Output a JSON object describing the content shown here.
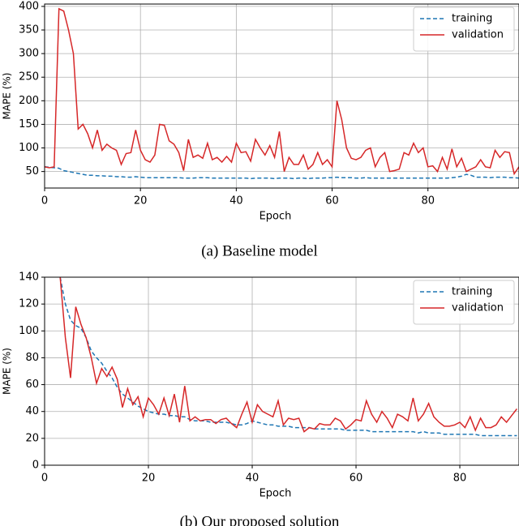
{
  "chart_data": [
    {
      "type": "line",
      "caption": "(a) Baseline model",
      "xlabel": "Epoch",
      "ylabel": "MAPE (%)",
      "x": [
        0,
        1,
        2,
        3,
        4,
        5,
        6,
        7,
        8,
        9,
        10,
        11,
        12,
        13,
        14,
        15,
        16,
        17,
        18,
        19,
        20,
        21,
        22,
        23,
        24,
        25,
        26,
        27,
        28,
        29,
        30,
        31,
        32,
        33,
        34,
        35,
        36,
        37,
        38,
        39,
        40,
        41,
        42,
        43,
        44,
        45,
        46,
        47,
        48,
        49,
        50,
        51,
        52,
        53,
        54,
        55,
        56,
        57,
        58,
        59,
        60,
        61,
        62,
        63,
        64,
        65,
        66,
        67,
        68,
        69,
        70,
        71,
        72,
        73,
        74,
        75,
        76,
        77,
        78,
        79,
        80,
        81,
        82,
        83,
        84,
        85,
        86,
        87,
        88,
        89,
        90,
        91,
        92,
        93,
        94,
        95,
        96,
        97,
        98,
        99
      ],
      "series": [
        {
          "name": "training",
          "color": "#1f77b4",
          "linestyle": "dashed",
          "values": [
            60,
            59,
            58,
            57,
            52,
            50,
            48,
            46,
            44,
            42,
            42,
            41,
            41,
            40,
            40,
            39,
            39,
            38,
            38,
            39,
            38,
            37,
            37,
            37,
            37,
            37,
            37,
            37,
            37,
            36,
            36,
            36,
            37,
            37,
            37,
            36,
            36,
            36,
            36,
            36,
            36,
            36,
            36,
            35,
            36,
            36,
            36,
            36,
            35,
            36,
            36,
            36,
            35,
            36,
            36,
            35,
            36,
            36,
            36,
            37,
            37,
            38,
            37,
            37,
            37,
            36,
            36,
            37,
            36,
            36,
            36,
            36,
            36,
            36,
            36,
            36,
            36,
            36,
            36,
            36,
            36,
            36,
            36,
            36,
            36,
            37,
            38,
            40,
            44,
            42,
            38,
            38,
            38,
            37,
            38,
            38,
            38,
            37,
            37,
            36
          ]
        },
        {
          "name": "validation",
          "color": "#d62728",
          "linestyle": "solid",
          "values": [
            60,
            58,
            60,
            395,
            390,
            350,
            300,
            140,
            150,
            130,
            100,
            138,
            95,
            108,
            100,
            95,
            65,
            88,
            90,
            138,
            95,
            75,
            70,
            85,
            150,
            148,
            115,
            108,
            90,
            52,
            118,
            80,
            85,
            78,
            110,
            75,
            80,
            70,
            82,
            70,
            110,
            90,
            92,
            72,
            118,
            100,
            85,
            105,
            80,
            135,
            50,
            80,
            65,
            65,
            85,
            55,
            65,
            90,
            65,
            75,
            60,
            200,
            160,
            100,
            78,
            75,
            80,
            95,
            100,
            60,
            80,
            90,
            50,
            52,
            55,
            90,
            85,
            110,
            90,
            100,
            60,
            62,
            50,
            80,
            55,
            98,
            60,
            78,
            50,
            55,
            60,
            75,
            60,
            58,
            95,
            80,
            92,
            90,
            45,
            60
          ]
        }
      ],
      "xlim": [
        0,
        99
      ],
      "xticks": [
        0,
        20,
        40,
        60,
        80
      ],
      "ylim": [
        15,
        405
      ],
      "yticks": [
        50,
        100,
        150,
        200,
        250,
        300,
        350,
        400
      ],
      "grid": true,
      "legend": "upper right"
    },
    {
      "type": "line",
      "caption": "(b) Our proposed solution",
      "xlabel": "Epoch",
      "ylabel": "MAPE (%)",
      "x": [
        3,
        4,
        5,
        6,
        7,
        8,
        9,
        10,
        11,
        12,
        13,
        14,
        15,
        16,
        17,
        18,
        19,
        20,
        21,
        22,
        23,
        24,
        25,
        26,
        27,
        28,
        29,
        30,
        31,
        32,
        33,
        34,
        35,
        36,
        37,
        38,
        39,
        40,
        41,
        42,
        43,
        44,
        45,
        46,
        47,
        48,
        49,
        50,
        51,
        52,
        53,
        54,
        55,
        56,
        57,
        58,
        59,
        60,
        61,
        62,
        63,
        64,
        65,
        66,
        67,
        68,
        69,
        70,
        71,
        72,
        73,
        74,
        75,
        76,
        77,
        78,
        79,
        80,
        81,
        82,
        83,
        84,
        85,
        86,
        87,
        88,
        89,
        90,
        91
      ],
      "series": [
        {
          "name": "training",
          "color": "#1f77b4",
          "linestyle": "dashed",
          "values": [
            140,
            120,
            108,
            104,
            102,
            95,
            85,
            80,
            76,
            70,
            65,
            58,
            53,
            50,
            47,
            44,
            42,
            40,
            39,
            38,
            38,
            37,
            37,
            36,
            36,
            34,
            33,
            33,
            33,
            32,
            32,
            32,
            32,
            31,
            30,
            30,
            31,
            33,
            32,
            31,
            30,
            30,
            29,
            29,
            29,
            28,
            28,
            28,
            28,
            27,
            27,
            27,
            27,
            27,
            27,
            26,
            26,
            26,
            26,
            26,
            25,
            25,
            25,
            25,
            25,
            25,
            25,
            25,
            25,
            24,
            25,
            24,
            24,
            24,
            23,
            23,
            23,
            23,
            23,
            23,
            23,
            22,
            22,
            22,
            22,
            22,
            22,
            22,
            22
          ]
        },
        {
          "name": "validation",
          "color": "#d62728",
          "linestyle": "solid",
          "values": [
            140,
            95,
            65,
            118,
            105,
            95,
            80,
            61,
            72,
            66,
            73,
            64,
            43,
            57,
            45,
            51,
            36,
            50,
            45,
            38,
            50,
            37,
            53,
            32,
            59,
            33,
            36,
            33,
            34,
            34,
            31,
            34,
            35,
            31,
            28,
            38,
            47,
            32,
            45,
            40,
            38,
            36,
            48,
            30,
            35,
            34,
            35,
            25,
            28,
            27,
            31,
            30,
            30,
            35,
            33,
            27,
            30,
            34,
            33,
            48,
            38,
            32,
            40,
            35,
            28,
            38,
            36,
            33,
            50,
            33,
            38,
            46,
            36,
            32,
            29,
            29,
            30,
            32,
            28,
            36,
            26,
            35,
            28,
            28,
            30,
            36,
            32,
            37,
            42
          ]
        }
      ],
      "xlim": [
        0,
        91.4
      ],
      "xticks": [
        0,
        20,
        40,
        60,
        80
      ],
      "ylim": [
        0,
        140
      ],
      "yticks": [
        0,
        20,
        40,
        60,
        80,
        100,
        120,
        140
      ],
      "grid": true,
      "legend": "upper right"
    }
  ]
}
